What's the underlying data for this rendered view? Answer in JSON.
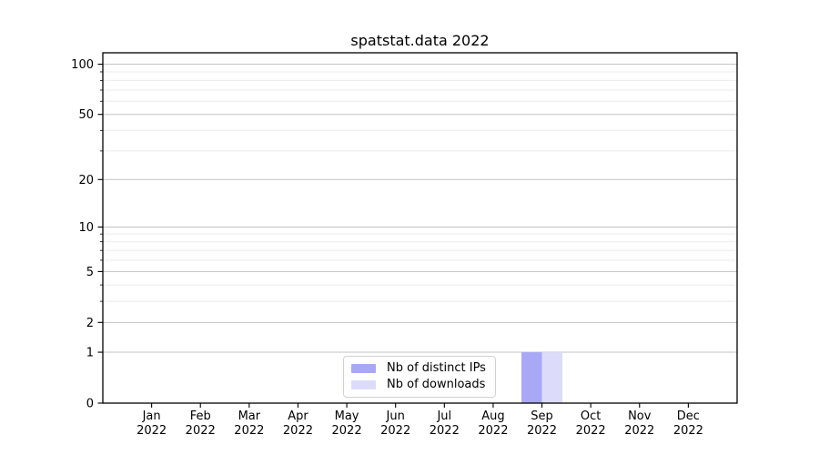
{
  "chart_data": {
    "type": "bar",
    "title": "spatstat.data 2022",
    "categories": [
      "Jan",
      "Feb",
      "Mar",
      "Apr",
      "May",
      "Jun",
      "Jul",
      "Aug",
      "Sep",
      "Oct",
      "Nov",
      "Dec"
    ],
    "x_tick_year": "2022",
    "series": [
      {
        "name": "Nb of distinct IPs",
        "color": "#a8a8f7",
        "values": [
          0,
          0,
          0,
          0,
          0,
          0,
          0,
          0,
          1,
          0,
          0,
          0
        ]
      },
      {
        "name": "Nb of downloads",
        "color": "#dcdcfa",
        "values": [
          0,
          0,
          0,
          0,
          0,
          0,
          0,
          0,
          1,
          0,
          0,
          0
        ]
      }
    ],
    "y_scale": "log1p",
    "y_major_ticks": [
      0,
      1,
      2,
      5,
      10,
      20,
      50,
      100
    ],
    "y_minor_ticks": [
      3,
      4,
      6,
      7,
      8,
      9,
      30,
      40,
      60,
      70,
      80,
      90
    ],
    "ylim": [
      0,
      117
    ],
    "xlabel": "",
    "ylabel": "",
    "grid": true,
    "legend_position": "bottom-center",
    "colors": {
      "major_grid": "#c3c3c3",
      "minor_grid": "#ebebeb",
      "axis": "#000000",
      "background": "#ffffff"
    }
  }
}
